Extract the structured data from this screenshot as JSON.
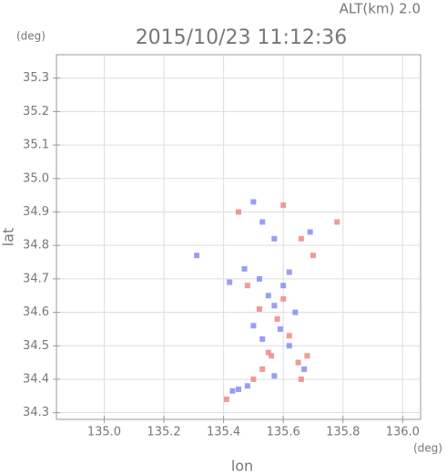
{
  "chart_data": {
    "type": "scatter",
    "title": "2015/10/23 11:12:36",
    "subtitle": "ALT(km) 2.0",
    "y_unit": "(deg)",
    "x_unit": "(deg)",
    "xlabel": "lon",
    "ylabel": "lat",
    "xlim": [
      134.84,
      136.06
    ],
    "ylim": [
      34.28,
      35.37
    ],
    "xticks": [
      {
        "value": 135,
        "label": "135.0"
      },
      135.2,
      135.4,
      135.6,
      135.8,
      {
        "value": 136,
        "label": "136.0"
      }
    ],
    "yticks": [
      34.3,
      34.4,
      34.5,
      34.6,
      34.7,
      34.8,
      34.9,
      {
        "value": 35,
        "label": "35.0"
      },
      35.1,
      35.2,
      35.3
    ],
    "grid": true,
    "series": [
      {
        "color": "#7f86f0",
        "x": [
          135.5,
          135.53,
          135.57,
          135.69,
          135.52,
          135.55,
          135.57,
          135.6,
          135.5,
          135.53,
          135.62,
          135.67,
          135.57,
          135.45,
          135.43,
          135.48,
          135.47,
          135.42,
          135.64,
          135.59,
          135.31,
          135.62
        ],
        "values": [
          34.93,
          34.87,
          34.82,
          34.84,
          34.7,
          34.65,
          34.62,
          34.68,
          34.56,
          34.52,
          34.5,
          34.43,
          34.41,
          34.37,
          34.365,
          34.38,
          34.73,
          34.69,
          34.6,
          34.55,
          34.77,
          34.72
        ]
      },
      {
        "color": "#f08080",
        "x": [
          135.45,
          135.6,
          135.66,
          135.78,
          135.52,
          135.58,
          135.6,
          135.55,
          135.65,
          135.56,
          135.68,
          135.66,
          135.5,
          135.41,
          135.48,
          135.62,
          135.7,
          135.53
        ],
        "values": [
          34.9,
          34.92,
          34.82,
          34.87,
          34.61,
          34.58,
          34.64,
          34.48,
          34.45,
          34.47,
          34.47,
          34.4,
          34.4,
          34.34,
          34.68,
          34.53,
          34.77,
          34.43
        ]
      }
    ]
  }
}
